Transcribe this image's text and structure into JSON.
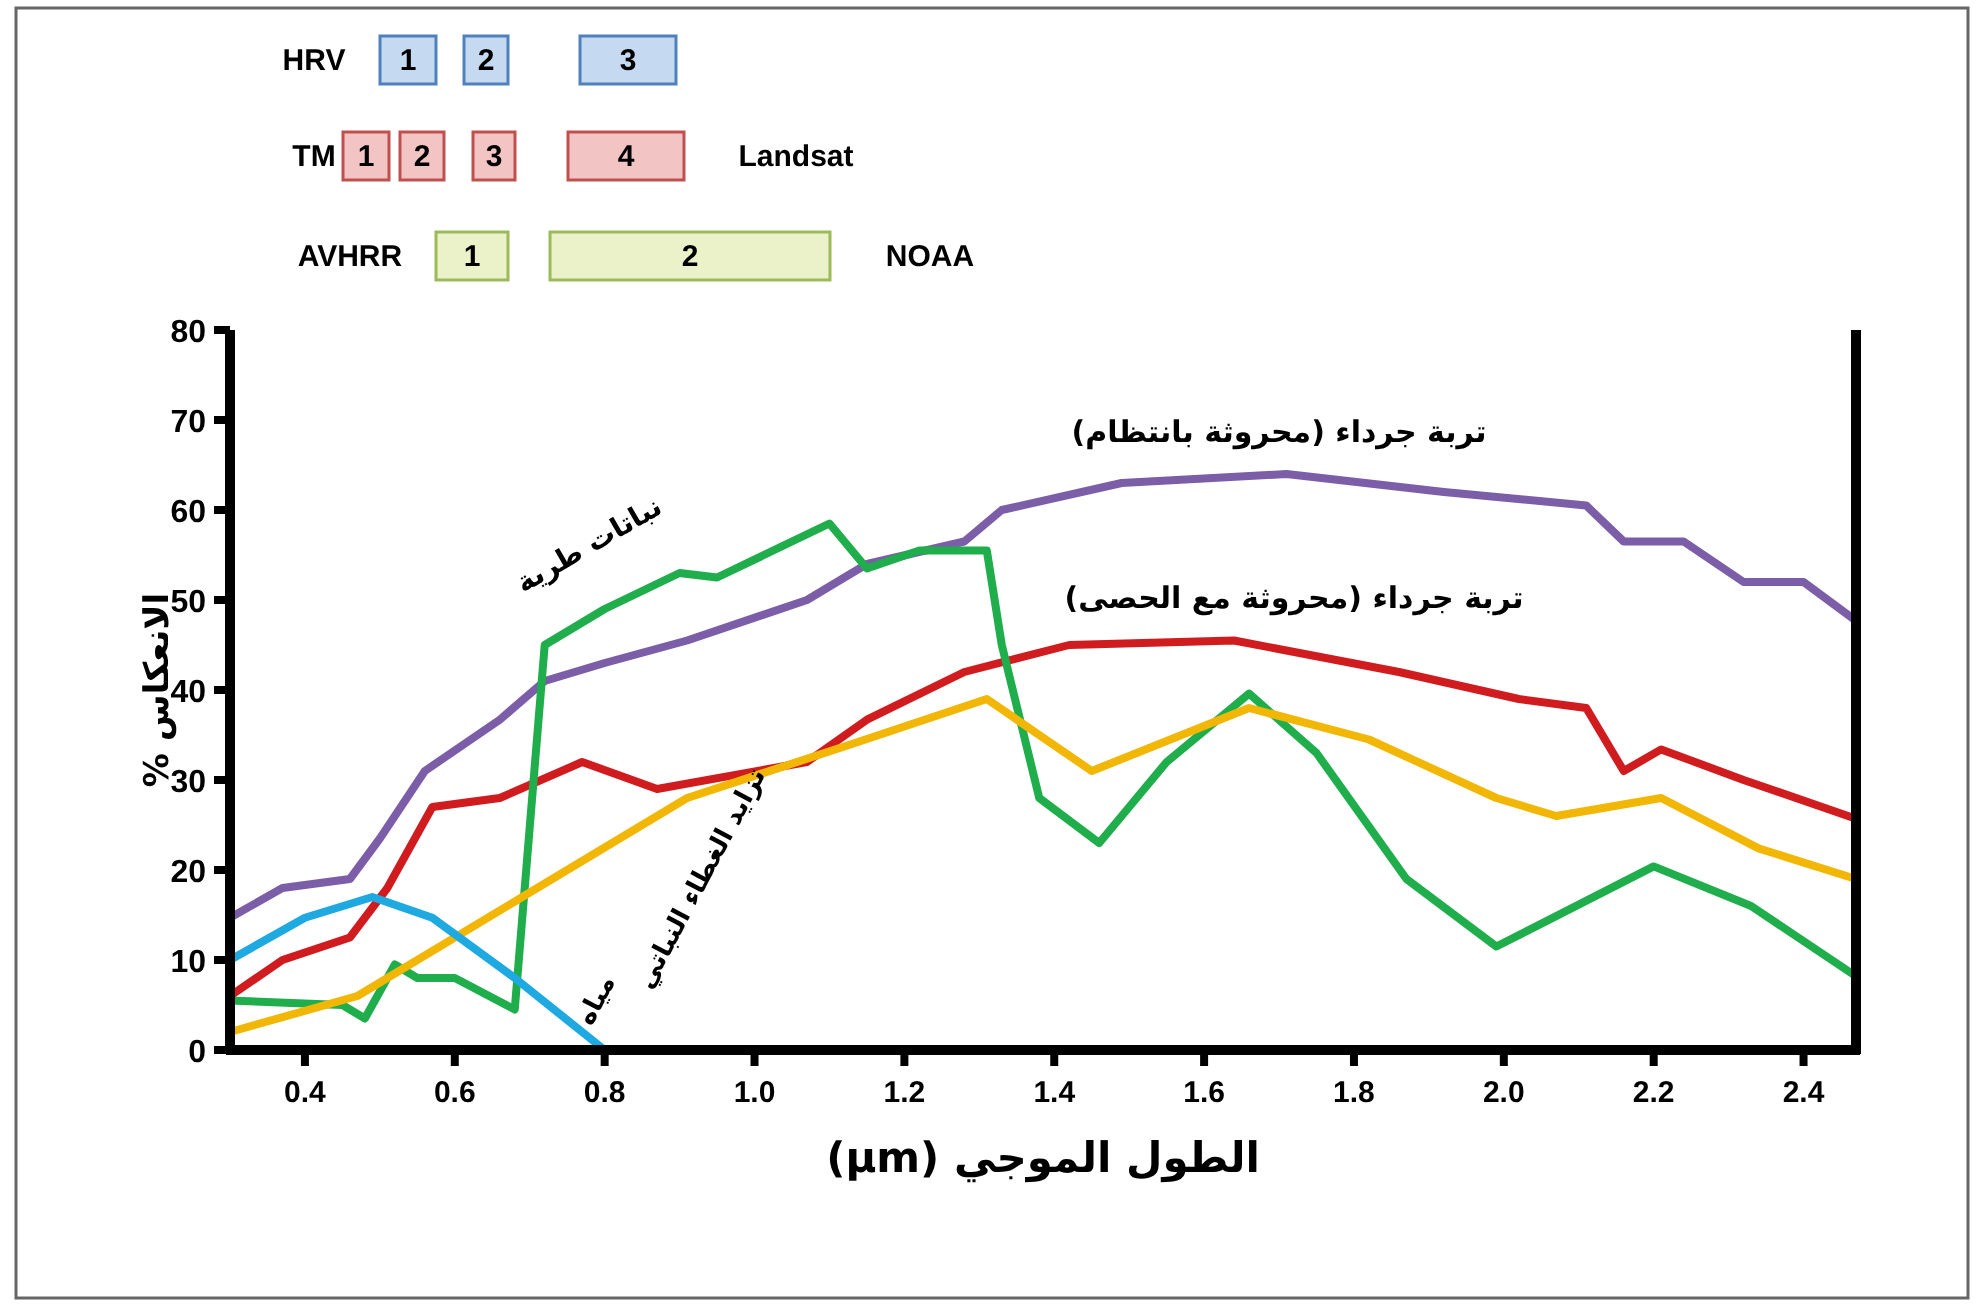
{
  "chart_data": {
    "type": "line",
    "xlabel": "الطول الموجي (μm)",
    "ylabel": "الانعكاس %",
    "xlim": [
      0.3,
      2.47
    ],
    "ylim": [
      0,
      80
    ],
    "xticks": [
      0.4,
      0.6,
      0.8,
      {
        "value": 1.0,
        "label": "1.0"
      },
      1.2,
      1.4,
      1.6,
      1.8,
      {
        "value": 2.0,
        "label": "2.0"
      },
      2.2,
      2.4
    ],
    "yticks": [
      0,
      10,
      20,
      30,
      40,
      50,
      60,
      70,
      80
    ],
    "annotations": [
      "HRV",
      "1",
      "2",
      "3",
      "TM",
      "1",
      "2",
      "3",
      "4",
      "Landsat",
      "AVHRR",
      "1",
      "2",
      "NOAA"
    ],
    "series": [
      {
        "name": "تربة جرداء (محروثة بانتظام)",
        "color": "#7b5ea7",
        "x": [
          0.3,
          0.37,
          0.46,
          0.5,
          0.56,
          0.66,
          0.72,
          0.8,
          0.91,
          1.07,
          1.15,
          1.28,
          1.33,
          1.49,
          1.71,
          1.92,
          2.11,
          2.16,
          2.24,
          2.32,
          2.4,
          2.47
        ],
        "values": [
          14.7,
          18,
          19,
          23.5,
          31,
          36.7,
          41,
          43,
          45.5,
          50,
          54,
          56.5,
          60,
          63,
          64,
          62,
          60.5,
          56.5,
          56.5,
          52,
          52,
          47.7
        ]
      },
      {
        "name": "تربة جرداء (محروثة مع الحصى)",
        "color": "#d01c1f",
        "x": [
          0.3,
          0.37,
          0.46,
          0.51,
          0.57,
          0.66,
          0.77,
          0.87,
          1.07,
          1.15,
          1.28,
          1.42,
          1.64,
          1.86,
          2.02,
          2.11,
          2.16,
          2.21,
          2.32,
          2.47
        ],
        "values": [
          6,
          10,
          12.5,
          18,
          27,
          28,
          32,
          29,
          32,
          36.7,
          42,
          45,
          45.5,
          42,
          39,
          38,
          31,
          33.4,
          30,
          25.7
        ]
      },
      {
        "name": "نباتات طرية",
        "color": "#1fae4b",
        "x": [
          0.3,
          0.45,
          0.48,
          0.52,
          0.55,
          0.6,
          0.68,
          0.72,
          0.8,
          0.9,
          0.95,
          1.1,
          1.15,
          1.22,
          1.31,
          1.33,
          1.38,
          1.46,
          1.55,
          1.66,
          1.75,
          1.87,
          1.99,
          2.2,
          2.33,
          2.47
        ],
        "values": [
          5.5,
          5,
          3.5,
          9.5,
          8,
          8,
          4.5,
          45,
          49,
          53,
          52.5,
          58.5,
          53.5,
          55.5,
          55.5,
          45,
          28,
          23,
          32,
          39.6,
          33,
          19,
          11.5,
          20.4,
          16,
          8.2
        ]
      },
      {
        "name": "تزايد الغطاء النباتي",
        "color": "#f2b705",
        "x": [
          0.3,
          0.47,
          0.69,
          0.91,
          1.13,
          1.31,
          1.45,
          1.66,
          1.82,
          1.99,
          2.07,
          2.21,
          2.34,
          2.47
        ],
        "values": [
          2,
          6,
          17,
          28,
          34,
          39,
          31,
          38,
          34.5,
          28,
          26,
          28,
          22.4,
          19
        ]
      },
      {
        "name": "مياه",
        "color": "#1fa9e1",
        "x": [
          0.3,
          0.4,
          0.49,
          0.57,
          0.68,
          0.8
        ],
        "values": [
          10,
          14.7,
          17,
          14.7,
          8,
          0
        ]
      }
    ]
  }
}
